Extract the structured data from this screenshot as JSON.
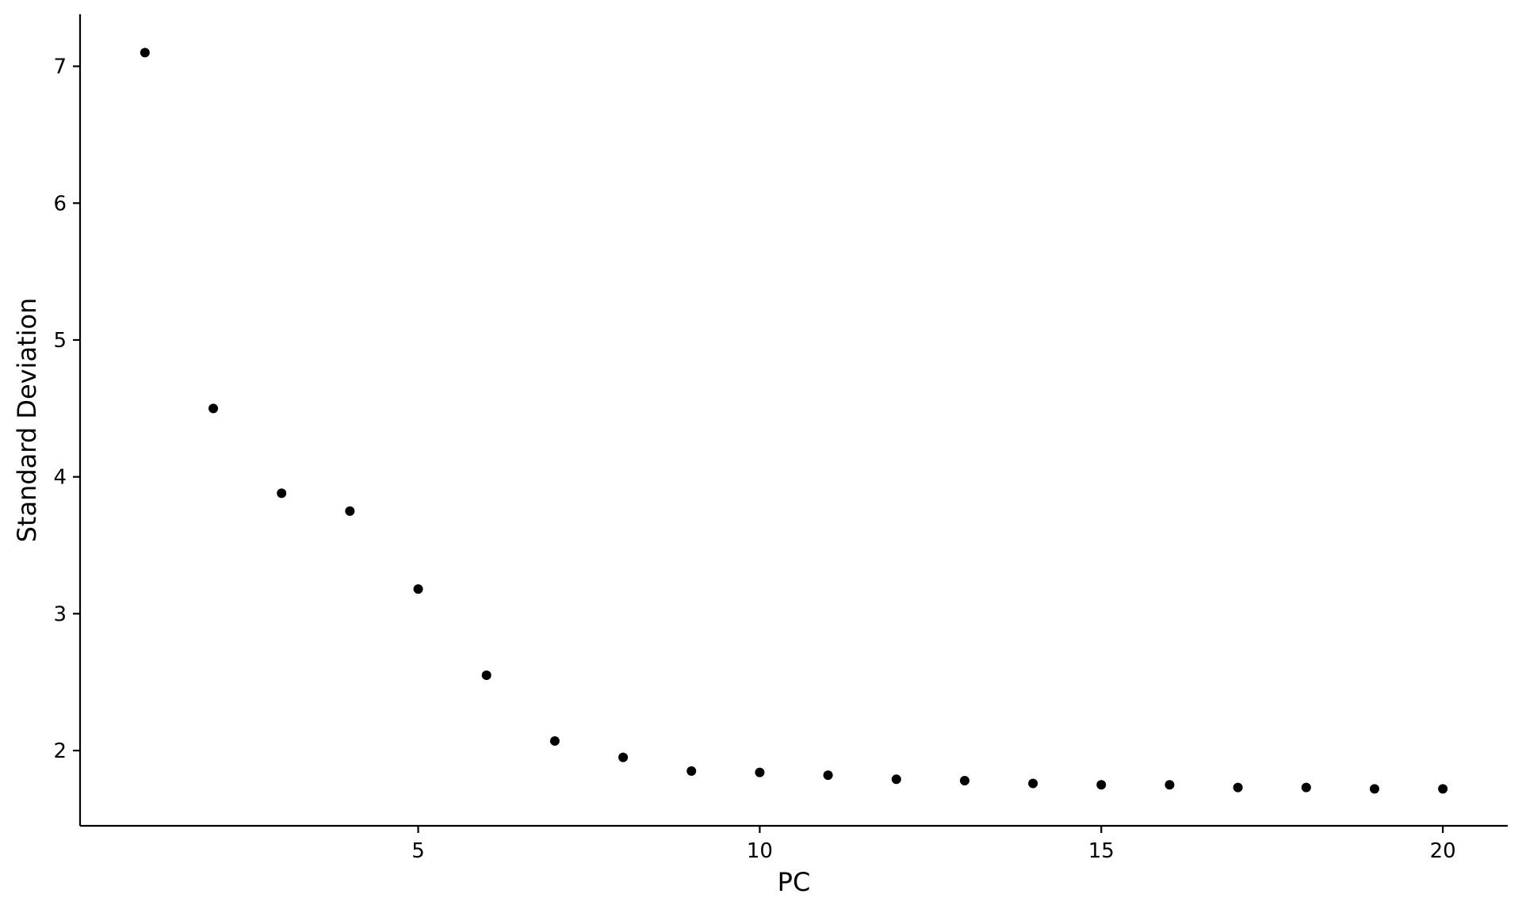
{
  "chart_data": {
    "type": "scatter",
    "title": "",
    "xlabel": "PC",
    "ylabel": "Standard Deviation",
    "x": [
      1,
      2,
      3,
      4,
      5,
      6,
      7,
      8,
      9,
      10,
      11,
      12,
      13,
      14,
      15,
      16,
      17,
      18,
      19,
      20
    ],
    "values": [
      7.1,
      4.5,
      3.88,
      3.75,
      3.18,
      2.55,
      2.07,
      1.95,
      1.85,
      1.84,
      1.82,
      1.79,
      1.78,
      1.76,
      1.75,
      1.75,
      1.73,
      1.73,
      1.72,
      1.72
    ],
    "xlim": [
      0.05,
      20.95
    ],
    "ylim": [
      1.45,
      7.38
    ],
    "xticks": [
      5,
      10,
      15,
      20
    ],
    "yticks": [
      2,
      3,
      4,
      5,
      6,
      7
    ],
    "grid": false,
    "point_color": "#000000"
  }
}
